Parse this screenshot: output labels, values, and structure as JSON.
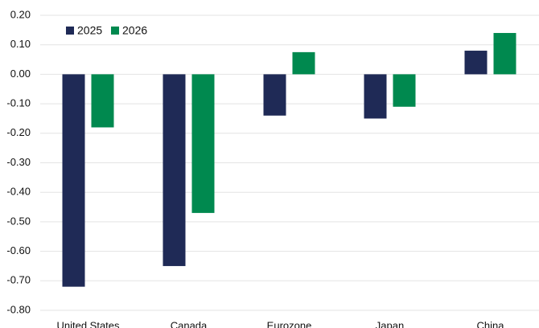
{
  "chart_data": {
    "type": "bar",
    "categories": [
      "United States",
      "Canada",
      "Eurozone",
      "Japan",
      "China"
    ],
    "series": [
      {
        "name": "2025",
        "color": "#1f2a56",
        "values": [
          -0.72,
          -0.65,
          -0.14,
          -0.15,
          0.08
        ]
      },
      {
        "name": "2026",
        "color": "#00894f",
        "values": [
          -0.18,
          -0.47,
          0.075,
          -0.11,
          0.14
        ]
      }
    ],
    "ylim": [
      -0.8,
      0.2
    ],
    "yticks": [
      {
        "value": 0.2,
        "label": "0.20"
      },
      {
        "value": 0.1,
        "label": "0.10"
      },
      {
        "value": 0,
        "label": "0.00"
      },
      {
        "value": -0.1,
        "label": "-0.10"
      },
      {
        "value": -0.2,
        "label": "-0.20"
      },
      {
        "value": -0.3,
        "label": "-0.30"
      },
      {
        "value": -0.4,
        "label": "-0.40"
      },
      {
        "value": -0.5,
        "label": "-0.50"
      },
      {
        "value": -0.6,
        "label": "-0.60"
      },
      {
        "value": -0.7,
        "label": "-0.70"
      },
      {
        "value": -0.8,
        "label": "-0.80"
      }
    ],
    "grid": true
  }
}
